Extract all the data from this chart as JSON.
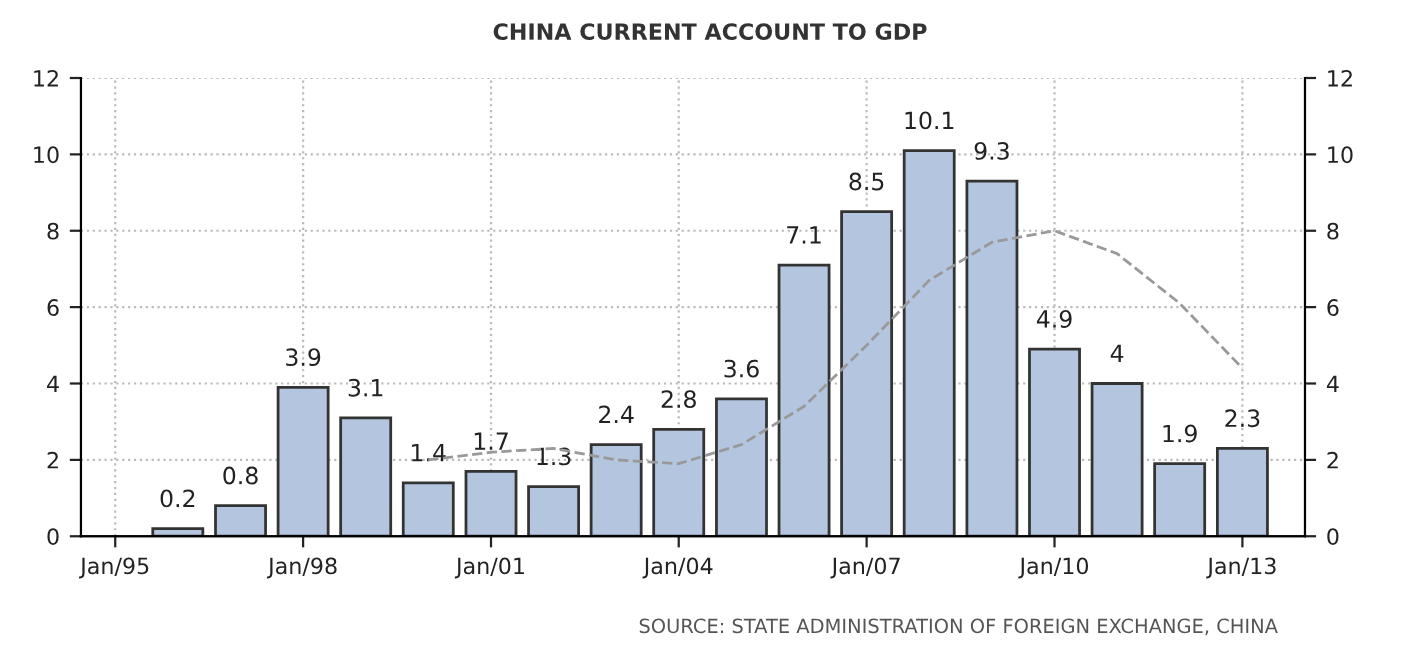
{
  "chart_data": {
    "type": "bar",
    "title": "CHINA CURRENT ACCOUNT TO GDP",
    "x": [
      "1996-01",
      "1997-01",
      "1998-01",
      "1999-01",
      "2000-01",
      "2001-01",
      "2002-01",
      "2003-01",
      "2004-01",
      "2005-01",
      "2006-01",
      "2007-01",
      "2008-01",
      "2009-01",
      "2010-01",
      "2011-01",
      "2012-01",
      "2013-01"
    ],
    "series": [
      {
        "color": "#b4c6df",
        "values": [
          0.2,
          0.8,
          3.9,
          3.1,
          1.4,
          1.7,
          1.3,
          2.4,
          2.8,
          3.6,
          7.1,
          8.5,
          10.1,
          9.3,
          4.9,
          4,
          1.9,
          2.3
        ],
        "value_labels": [
          "0.2",
          "0.8",
          "3.9",
          "3.1",
          "1.4",
          "1.7",
          "1.3",
          "2.4",
          "2.8",
          "3.6",
          "7.1",
          "8.5",
          "10.1",
          "9.3",
          "4.9",
          "4",
          "1.9",
          "2.3"
        ]
      },
      {
        "type": "line",
        "color": "#999999",
        "line_style": "dashed",
        "x": [
          "2000-01",
          "2001-01",
          "2002-01",
          "2003-01",
          "2004-01",
          "2005-01",
          "2006-01",
          "2007-01",
          "2008-01",
          "2009-01",
          "2010-01",
          "2011-01",
          "2012-01",
          "2013-01"
        ],
        "values": [
          2.0,
          2.2,
          2.3,
          2.0,
          1.9,
          2.4,
          3.4,
          5.0,
          6.7,
          7.7,
          8.0,
          7.4,
          6.1,
          4.4
        ]
      }
    ],
    "xlim": [
      "1994-06-15",
      "2014-01-01"
    ],
    "xticks": [
      {
        "value": "1995-01",
        "label": "Jan/95"
      },
      {
        "value": "1998-01",
        "label": "Jan/98"
      },
      {
        "value": "2001-01",
        "label": "Jan/01"
      },
      {
        "value": "2004-01",
        "label": "Jan/04"
      },
      {
        "value": "2007-01",
        "label": "Jan/07"
      },
      {
        "value": "2010-01",
        "label": "Jan/10"
      },
      {
        "value": "2013-01",
        "label": "Jan/13"
      }
    ],
    "ylim": [
      0,
      12
    ],
    "yticks": [
      0,
      2,
      4,
      6,
      8,
      10,
      12
    ],
    "y2lim": [
      0,
      12
    ],
    "y2ticks": [
      0,
      2,
      4,
      6,
      8,
      10,
      12
    ],
    "grid": true,
    "legend": false,
    "annotations": [
      "SOURCE: STATE ADMINISTRATION OF FOREIGN EXCHANGE, CHINA"
    ]
  }
}
